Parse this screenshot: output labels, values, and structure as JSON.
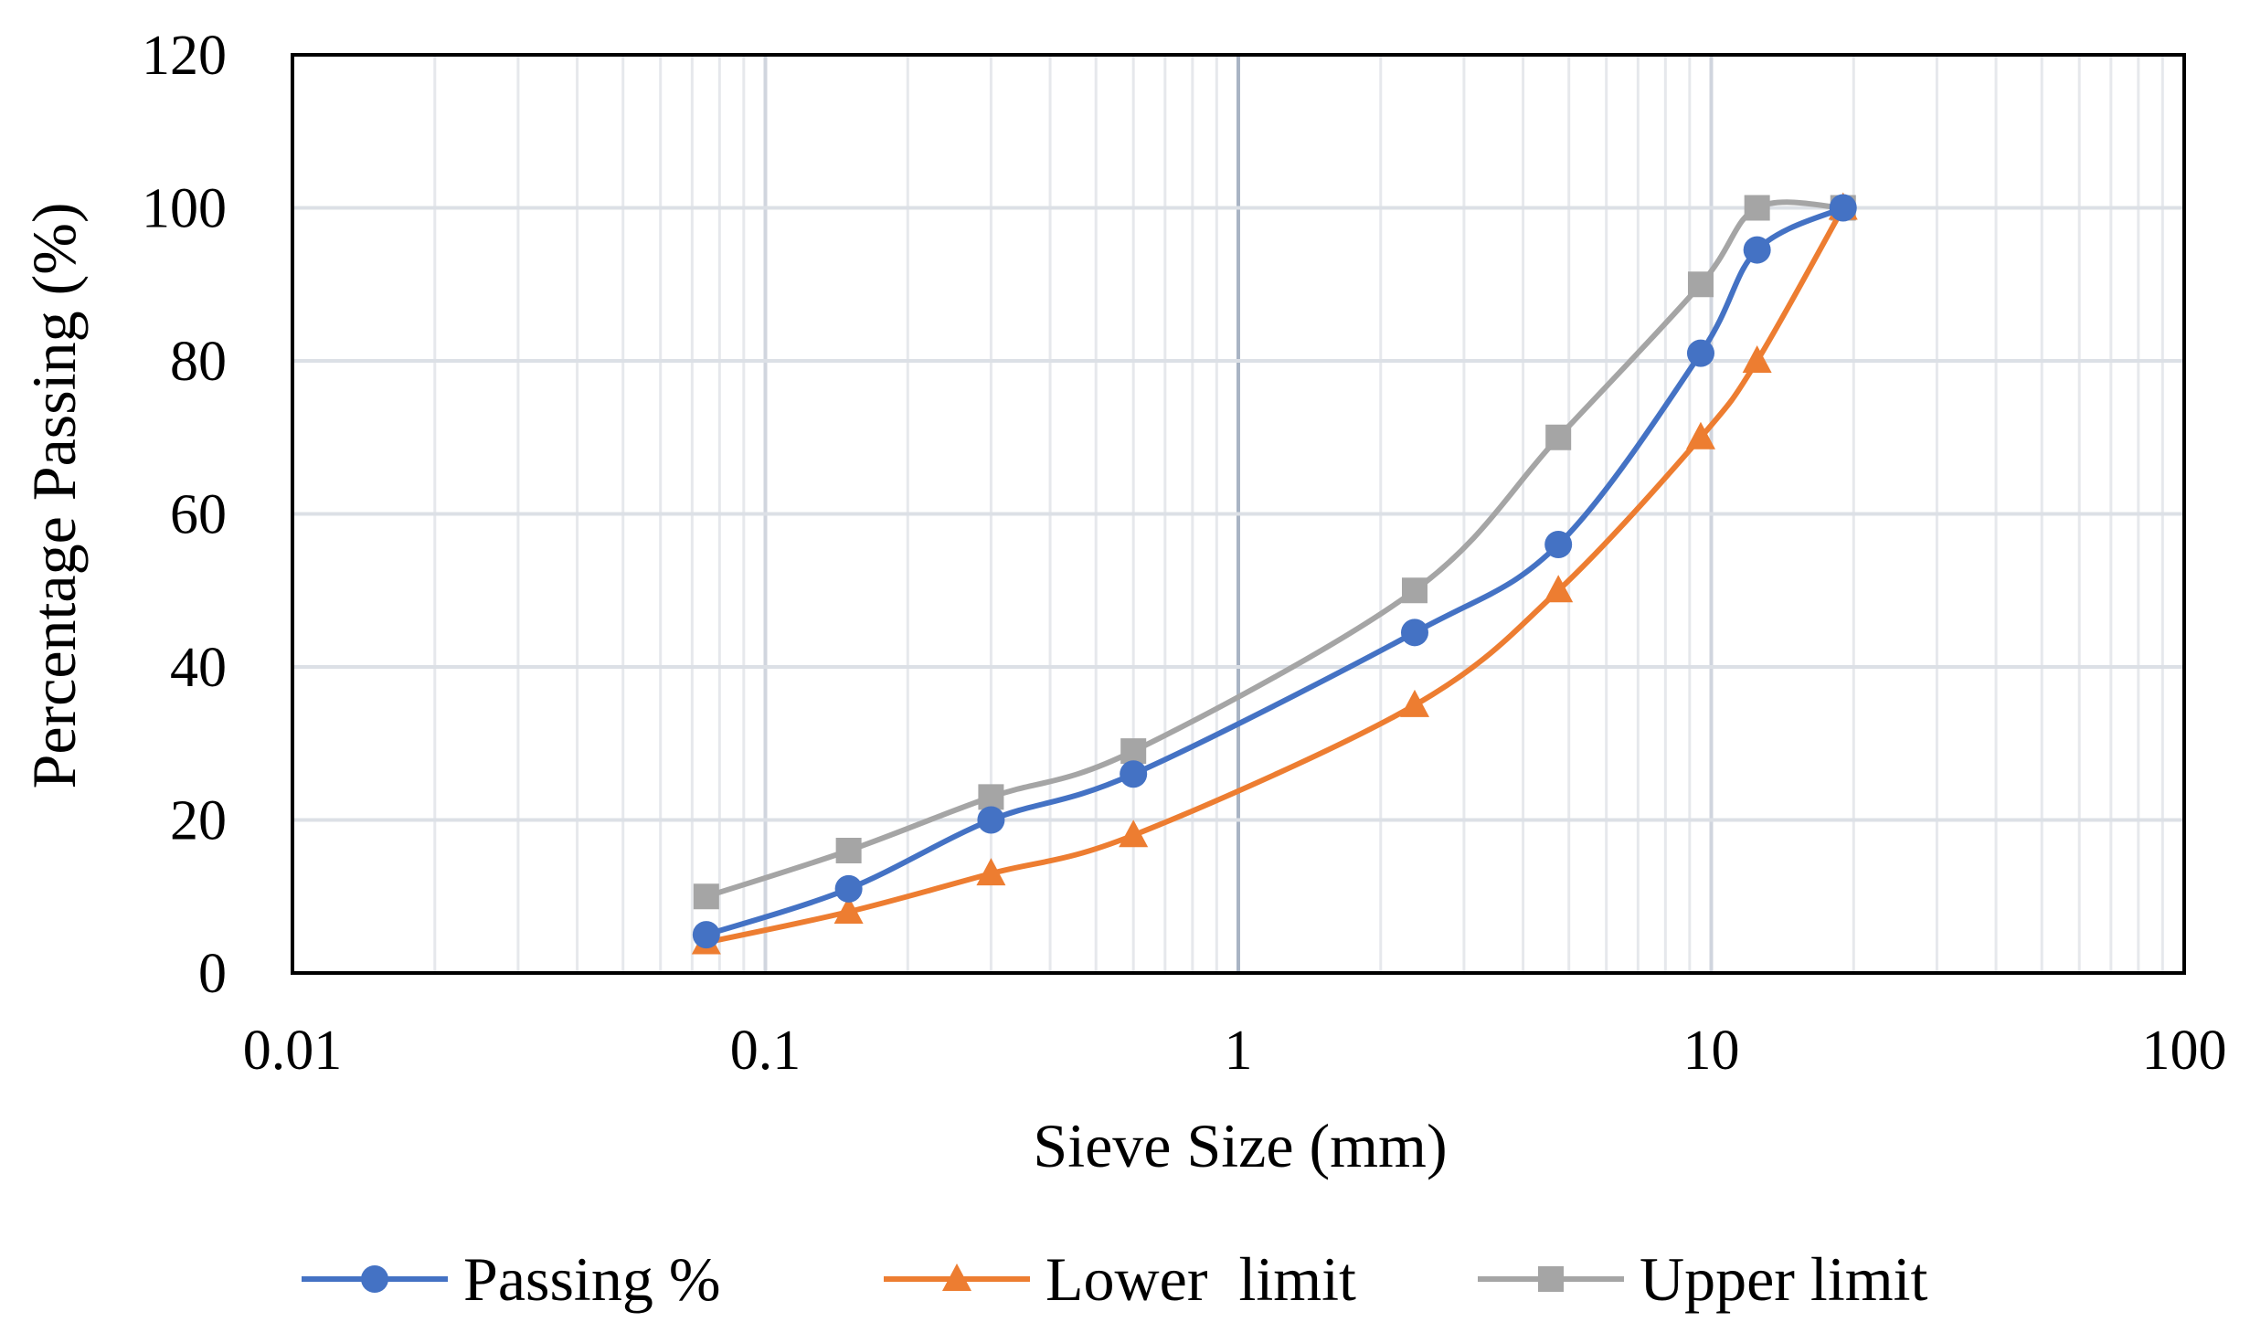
{
  "chart_data": {
    "type": "line",
    "title": "",
    "xlabel": "Sieve Size (mm)",
    "ylabel": "Percentage Passing (%)",
    "xscale": "log",
    "xlim": [
      0.01,
      100
    ],
    "ylim": [
      0,
      120
    ],
    "xticks": [
      0.01,
      0.1,
      1,
      10,
      100
    ],
    "xtick_labels": [
      "0.01",
      "0.1",
      "1",
      "10",
      "100"
    ],
    "yticks": [
      0,
      20,
      40,
      60,
      80,
      100,
      120
    ],
    "ytick_labels": [
      "0",
      "20",
      "40",
      "60",
      "80",
      "100",
      "120"
    ],
    "grid": true,
    "legend_position": "bottom",
    "series": [
      {
        "name": "Passing %",
        "color": "#4472C4",
        "marker": "circle",
        "x": [
          0.075,
          0.15,
          0.3,
          0.6,
          2.36,
          4.75,
          9.5,
          12.5,
          19
        ],
        "values": [
          5,
          11,
          20,
          26,
          44.5,
          56,
          81,
          94.5,
          100
        ]
      },
      {
        "name": "Lower  limit",
        "color": "#ED7D31",
        "marker": "triangle",
        "x": [
          0.075,
          0.15,
          0.3,
          0.6,
          2.36,
          4.75,
          9.5,
          12.5,
          19
        ],
        "values": [
          4,
          8,
          13,
          18,
          35,
          50,
          70,
          80,
          100
        ]
      },
      {
        "name": "Upper limit",
        "color": "#A5A5A5",
        "marker": "square",
        "x": [
          0.075,
          0.15,
          0.3,
          0.6,
          2.36,
          4.75,
          9.5,
          12.5,
          19
        ],
        "values": [
          10,
          16,
          23,
          29,
          50,
          70,
          90,
          100,
          100
        ]
      }
    ]
  }
}
